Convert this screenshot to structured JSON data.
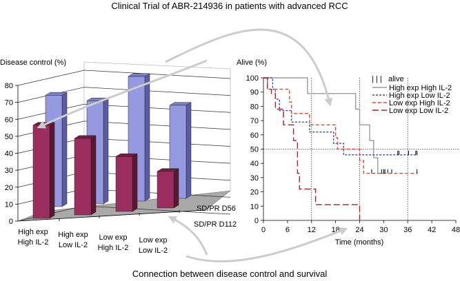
{
  "title": "Clinical Trial of ABR-214936 in patients with advanced RCC",
  "footer": "Connection between disease control and survival",
  "colors": {
    "d56_front": "#9599e0",
    "d56_side": "#5a5ca8",
    "d56_top": "#7b7fcc",
    "d112_front": "#9b2e5e",
    "d112_side": "#5a1733",
    "d112_top": "#6e1f40",
    "floor": "#a9a9a9",
    "arrow": "#cccccc",
    "km_high_high": "#9a9a9a",
    "km_high_low": "#3b4f9e",
    "km_low_high": "#e0453a",
    "km_low_low": "#a8222a"
  },
  "chart_data": [
    {
      "type": "bar",
      "subtype": "3d-grouped",
      "title": "Disease control (%)",
      "ylabel": "Disease control (%)",
      "ylim": [
        0,
        80
      ],
      "yticks": [
        "0",
        "10",
        "20",
        "30",
        "40",
        "50",
        "60",
        "70",
        "80"
      ],
      "categories": [
        [
          "High exp",
          "High IL-2"
        ],
        [
          "High exp",
          "Low IL-2"
        ],
        [
          "Low exp",
          "High IL-2"
        ],
        [
          "Low exp",
          "Low IL-2"
        ]
      ],
      "series": [
        {
          "name": "SD/PR D56",
          "values": [
            67,
            62,
            75,
            56
          ]
        },
        {
          "name": "SD/PR D112",
          "values": [
            56,
            46,
            33,
            22
          ]
        }
      ],
      "grid": true
    },
    {
      "type": "line",
      "subtype": "kaplan-meier",
      "ylabel": "Alive (%)",
      "xlabel": "Time (months)",
      "ylim": [
        0,
        100
      ],
      "xlim": [
        0,
        48
      ],
      "yticks": [
        "0",
        "10",
        "20",
        "30",
        "40",
        "50",
        "60",
        "70",
        "80",
        "90",
        "100"
      ],
      "xticks": [
        "0",
        "6",
        "12",
        "18",
        "24",
        "30",
        "36",
        "42",
        "48"
      ],
      "reference_lines": {
        "vertical": [
          12,
          24,
          36
        ],
        "horizontal": [
          50
        ]
      },
      "legend": {
        "placement": "top-right",
        "censor_label": "alive",
        "censor_glyph": "| | |"
      },
      "series": [
        {
          "name": "High exp High IL-2",
          "key": "km_high_high",
          "style": "solid",
          "steps": [
            [
              0,
              100
            ],
            [
              11,
              100
            ],
            [
              11,
              89
            ],
            [
              23,
              89
            ],
            [
              23,
              78
            ],
            [
              24,
              78
            ],
            [
              24,
              67
            ],
            [
              26.5,
              67
            ],
            [
              26.5,
              56
            ],
            [
              27.5,
              56
            ],
            [
              27.5,
              44
            ],
            [
              28.5,
              44
            ],
            [
              28.5,
              33
            ],
            [
              30,
              33
            ]
          ],
          "censored": []
        },
        {
          "name": "High exp Low IL-2",
          "key": "km_high_low",
          "style": "dotted",
          "steps": [
            [
              0,
              100
            ],
            [
              2.3,
              100
            ],
            [
              2.3,
              92
            ],
            [
              3,
              92
            ],
            [
              3,
              85
            ],
            [
              4,
              85
            ],
            [
              4,
              77
            ],
            [
              7,
              77
            ],
            [
              7,
              69
            ],
            [
              11.5,
              69
            ],
            [
              11.5,
              62
            ],
            [
              17.5,
              62
            ],
            [
              17.5,
              54
            ],
            [
              20,
              54
            ],
            [
              20,
              46
            ],
            [
              38.5,
              46
            ]
          ],
          "censored": [
            33.5,
            33.8,
            36.2,
            38,
            38.3
          ]
        },
        {
          "name": "Low exp High IL-2",
          "key": "km_low_high",
          "style": "dashed",
          "steps": [
            [
              0,
              100
            ],
            [
              1,
              100
            ],
            [
              1,
              92
            ],
            [
              6.5,
              92
            ],
            [
              6.5,
              83
            ],
            [
              7,
              83
            ],
            [
              7,
              75
            ],
            [
              11.5,
              75
            ],
            [
              11.5,
              67
            ],
            [
              18,
              67
            ],
            [
              18,
              58
            ],
            [
              18.5,
              58
            ],
            [
              18.5,
              50
            ],
            [
              24,
              50
            ],
            [
              24,
              42
            ],
            [
              25,
              42
            ],
            [
              25,
              33
            ],
            [
              38.5,
              33
            ]
          ],
          "censored": [
            27,
            29.5,
            30,
            30.3,
            31,
            32,
            38.3
          ]
        },
        {
          "name": "Low exp Low IL-2",
          "key": "km_low_low",
          "style": "longdash",
          "steps": [
            [
              0,
              100
            ],
            [
              1,
              100
            ],
            [
              1,
              92
            ],
            [
              2,
              92
            ],
            [
              2,
              89
            ],
            [
              3,
              89
            ],
            [
              3,
              78
            ],
            [
              5,
              78
            ],
            [
              5,
              67
            ],
            [
              7.5,
              67
            ],
            [
              7.5,
              56
            ],
            [
              8.5,
              56
            ],
            [
              8.5,
              33
            ],
            [
              9,
              33
            ],
            [
              9,
              22
            ],
            [
              13,
              22
            ],
            [
              13,
              11
            ],
            [
              24,
              11
            ],
            [
              24,
              0
            ]
          ],
          "censored": []
        }
      ]
    }
  ]
}
